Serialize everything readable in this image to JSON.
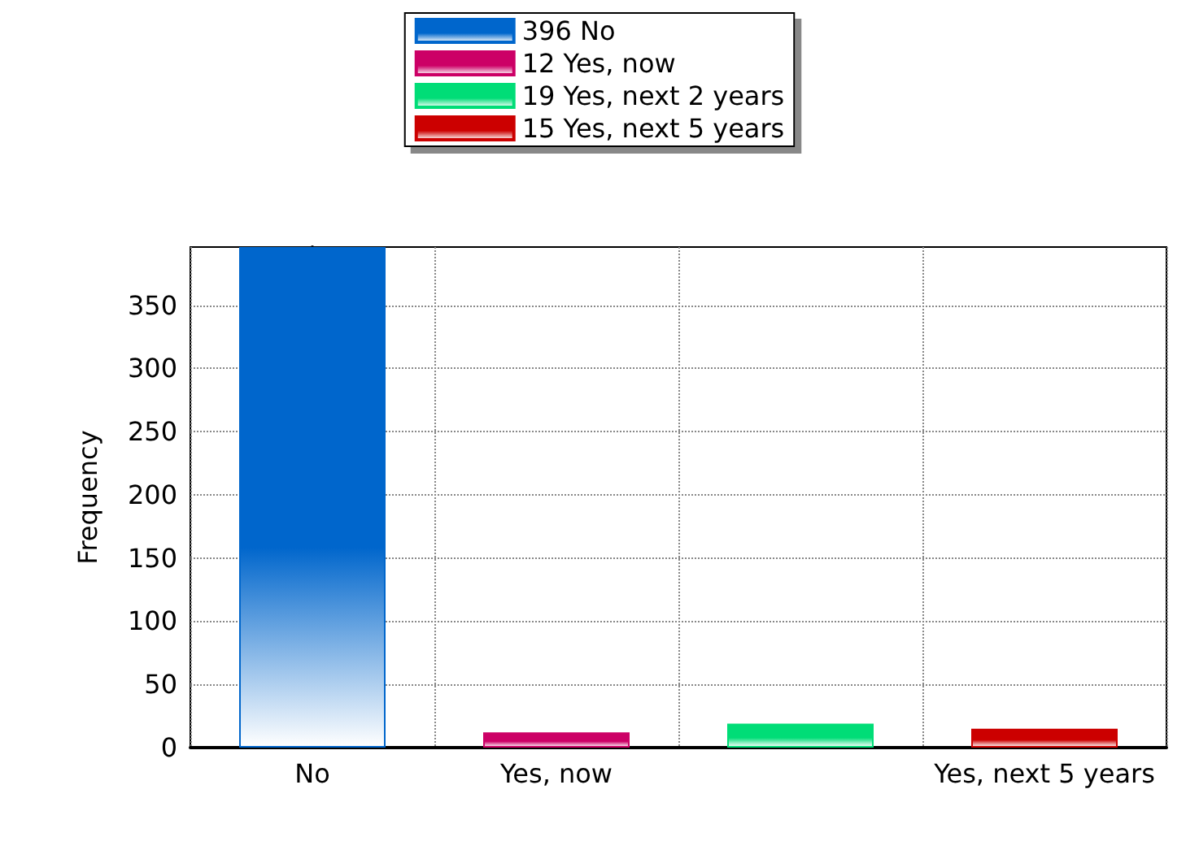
{
  "chart_data": {
    "type": "bar",
    "ylabel": "Frequency",
    "categories": [
      "No",
      "Yes, now",
      null,
      "Yes, next 5 years"
    ],
    "series": [
      {
        "name": "396 No",
        "color": "#0066cc",
        "values": [
          396,
          null,
          null,
          null
        ]
      },
      {
        "name": "12 Yes, now",
        "color": "#cc0066",
        "values": [
          null,
          12,
          null,
          null
        ]
      },
      {
        "name": "19 Yes, next 2 years",
        "color": "#00dd77",
        "values": [
          null,
          null,
          19,
          null
        ]
      },
      {
        "name": "15 Yes, next 5 years",
        "color": "#cc0000",
        "values": [
          null,
          null,
          null,
          15
        ]
      }
    ],
    "ylim": [
      0,
      396
    ],
    "yticks": [
      0,
      50,
      100,
      150,
      200,
      250,
      300,
      350
    ],
    "grid": true,
    "legend": "top"
  }
}
